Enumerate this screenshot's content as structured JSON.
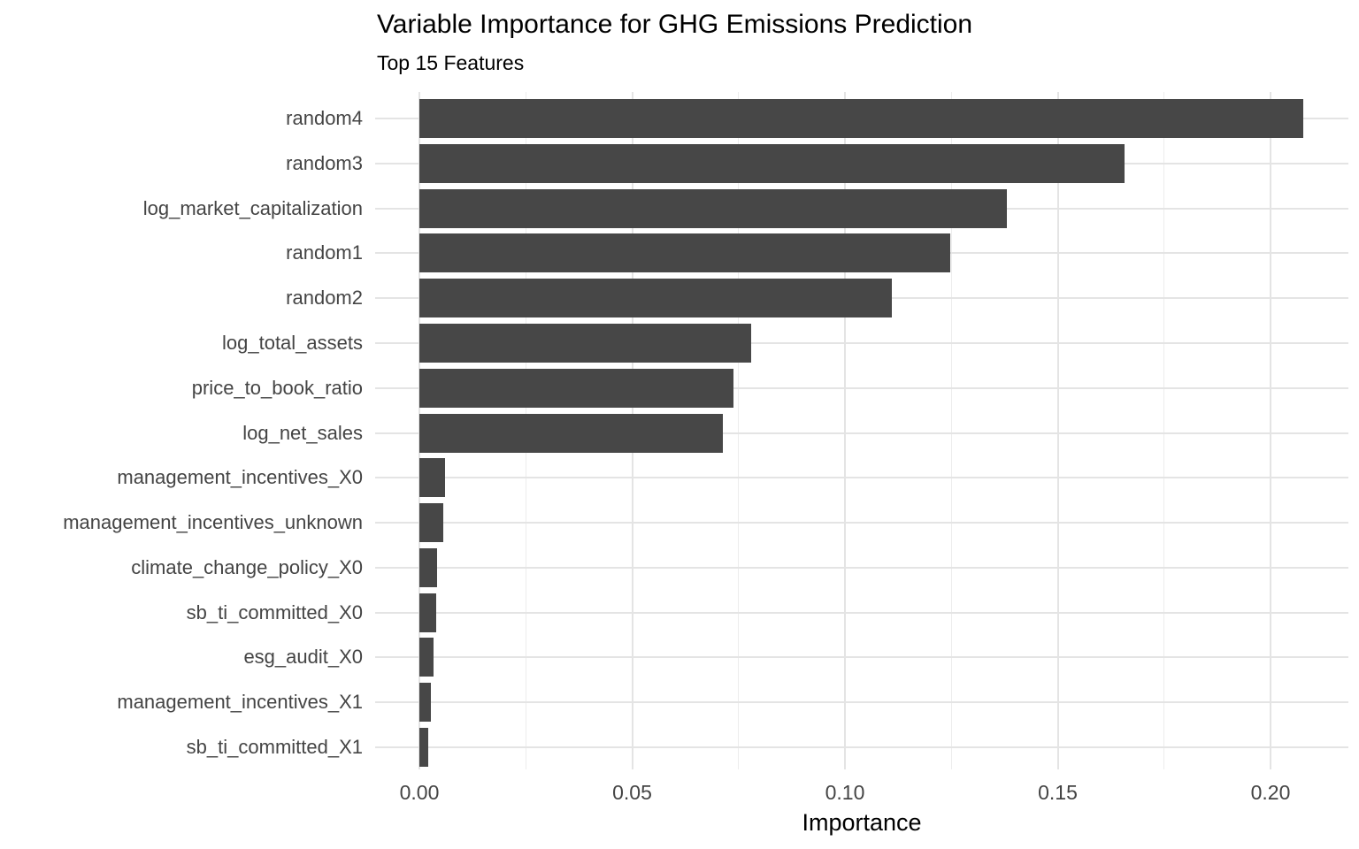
{
  "chart_data": {
    "type": "bar",
    "orientation": "horizontal",
    "title": "Variable Importance for GHG Emissions Prediction",
    "subtitle": "Top 15 Features",
    "xlabel": "Importance",
    "ylabel": "",
    "legend": false,
    "grid": true,
    "categories": [
      "random4",
      "random3",
      "log_market_capitalization",
      "random1",
      "random2",
      "log_total_assets",
      "price_to_book_ratio",
      "log_net_sales",
      "management_incentives_X0",
      "management_incentives_unknown",
      "climate_change_policy_X0",
      "sb_ti_committed_X0",
      "esg_audit_X0",
      "management_incentives_X1",
      "sb_ti_committed_X1"
    ],
    "values": [
      0.2076,
      0.1657,
      0.1381,
      0.1247,
      0.111,
      0.078,
      0.0738,
      0.0714,
      0.006,
      0.0056,
      0.0041,
      0.004,
      0.0034,
      0.0026,
      0.0021
    ],
    "x_ticks": {
      "labels": [
        "0.00",
        "0.05",
        "0.10",
        "0.15",
        "0.20"
      ],
      "values": [
        0.0,
        0.05,
        0.1,
        0.15,
        0.2
      ]
    },
    "x_minor_ticks": [
      0.025,
      0.075,
      0.125,
      0.175
    ],
    "xlim": [
      -0.0104,
      0.218
    ],
    "colors": {
      "bar": "#474747",
      "grid_major": "#e4e4e4",
      "grid_minor": "#ededed",
      "axis_text": "#444444",
      "title_text": "#000000"
    }
  }
}
